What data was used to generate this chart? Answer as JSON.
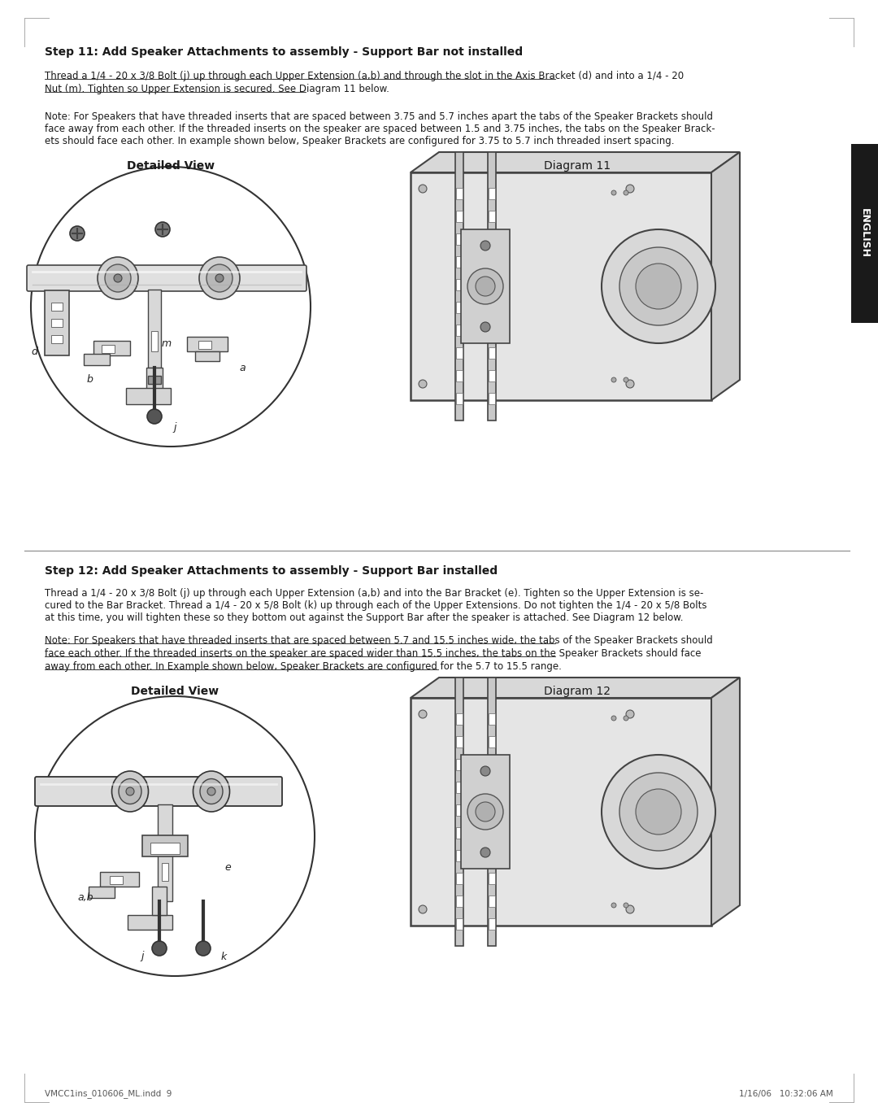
{
  "page_bg": "#ffffff",
  "text_color": "#1a1a1a",
  "step11_title": "Step 11: Add Speaker Attachments to assembly - Support Bar not installed",
  "step11_underline_line1": "Thread a 1/4 - 20 x 3/8 Bolt (j) up through each Upper Extension (a,b) and through the slot in the Axis Bracket (d) and into a 1/4 - 20",
  "step11_underline_line2": "Nut (m). Tighten so Upper Extension is secured. See Diagram 11 below.",
  "step11_note_line1": "Note: For Speakers that have threaded inserts that are spaced between 3.75 and 5.7 inches apart the tabs of the Speaker Brackets should",
  "step11_note_line2": "face away from each other. If the threaded inserts on the speaker are spaced between 1.5 and 3.75 inches, the tabs on the Speaker Brack-",
  "step11_note_line3": "ets should face each other. In example shown below, Speaker Brackets are configured for 3.75 to 5.7 inch threaded insert spacing.",
  "detailed_view_label": "Detailed View",
  "diagram11_label": "Diagram 11",
  "step12_title": "Step 12: Add Speaker Attachments to assembly - Support Bar installed",
  "step12_body_line1": "Thread a 1/4 - 20 x 3/8 Bolt (j) up through each Upper Extension (a,b) and into the Bar Bracket (e). Tighten so the Upper Extension is se-",
  "step12_body_line2": "cured to the Bar Bracket. Thread a 1/4 - 20 x 5/8 Bolt (k) up through each of the Upper Extensions. Do not tighten the 1/4 - 20 x 5/8 Bolts",
  "step12_body_line3": "at this time, you will tighten these so they bottom out against the Support Bar after the speaker is attached. See Diagram 12 below.",
  "step12_ul_line1": "Note: For Speakers that have threaded inserts that are spaced between 5.7 and 15.5 inches wide, the tabs of the Speaker Brackets should",
  "step12_ul_line2": "face each other. If the threaded inserts on the speaker are spaced wider than 15.5 inches, the tabs on the Speaker Brackets should face",
  "step12_ul_line3": "away from each other. In Example shown below, Speaker Brackets are configured for the 5.7 to 15.5 range.",
  "detailed_view2_label": "Detailed View",
  "diagram12_label": "Diagram 12",
  "footer_left": "VMCC1ins_010606_ML.indd  9",
  "footer_right": "1/16/06   10:32:06 AM",
  "english_label": "ENGLISH",
  "english_bg": "#1a1a1a",
  "english_text_color": "#ffffff"
}
